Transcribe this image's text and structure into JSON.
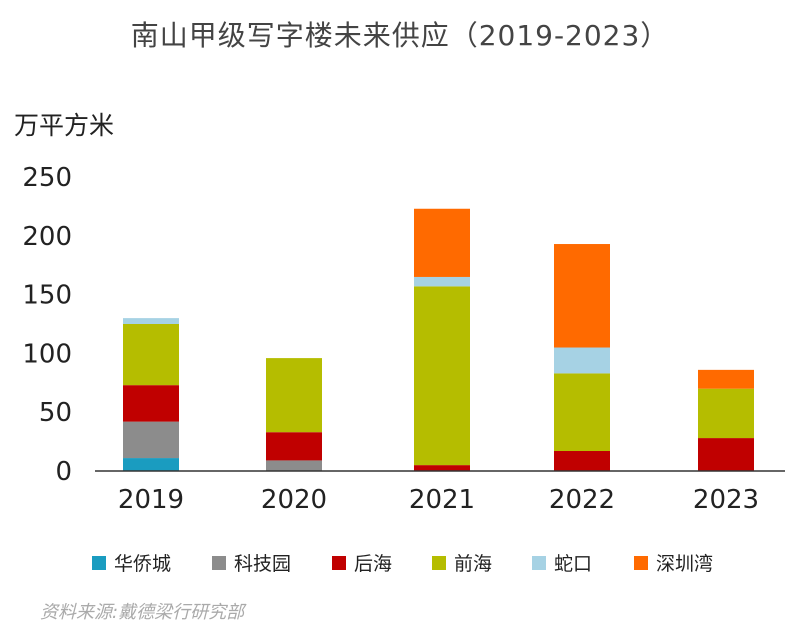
{
  "chart_data": {
    "type": "bar",
    "stacked": true,
    "title": "南山甲级写字楼未来供应（2019-2023）",
    "ylabel": "万平方米",
    "ylim": [
      0,
      250
    ],
    "yticks": [
      0,
      50,
      100,
      150,
      200,
      250
    ],
    "categories": [
      "2019",
      "2020",
      "2021",
      "2022",
      "2023"
    ],
    "series": [
      {
        "name": "华侨城",
        "color": "#1a9cc0",
        "values": [
          11,
          0,
          0,
          0,
          0
        ]
      },
      {
        "name": "科技园",
        "color": "#8c8c8c",
        "values": [
          31,
          9,
          0,
          0,
          0
        ]
      },
      {
        "name": "后海",
        "color": "#c00000",
        "values": [
          31,
          24,
          5,
          17,
          28
        ]
      },
      {
        "name": "前海",
        "color": "#b5bd00",
        "values": [
          52,
          63,
          152,
          66,
          42
        ]
      },
      {
        "name": "蛇口",
        "color": "#a6d2e4",
        "values": [
          5,
          0,
          8,
          22,
          0
        ]
      },
      {
        "name": "深圳湾",
        "color": "#ff6a00",
        "values": [
          0,
          0,
          58,
          88,
          16
        ]
      }
    ],
    "legend_position": "bottom",
    "grid": false,
    "source": "资料来源:戴德梁行研究部"
  }
}
